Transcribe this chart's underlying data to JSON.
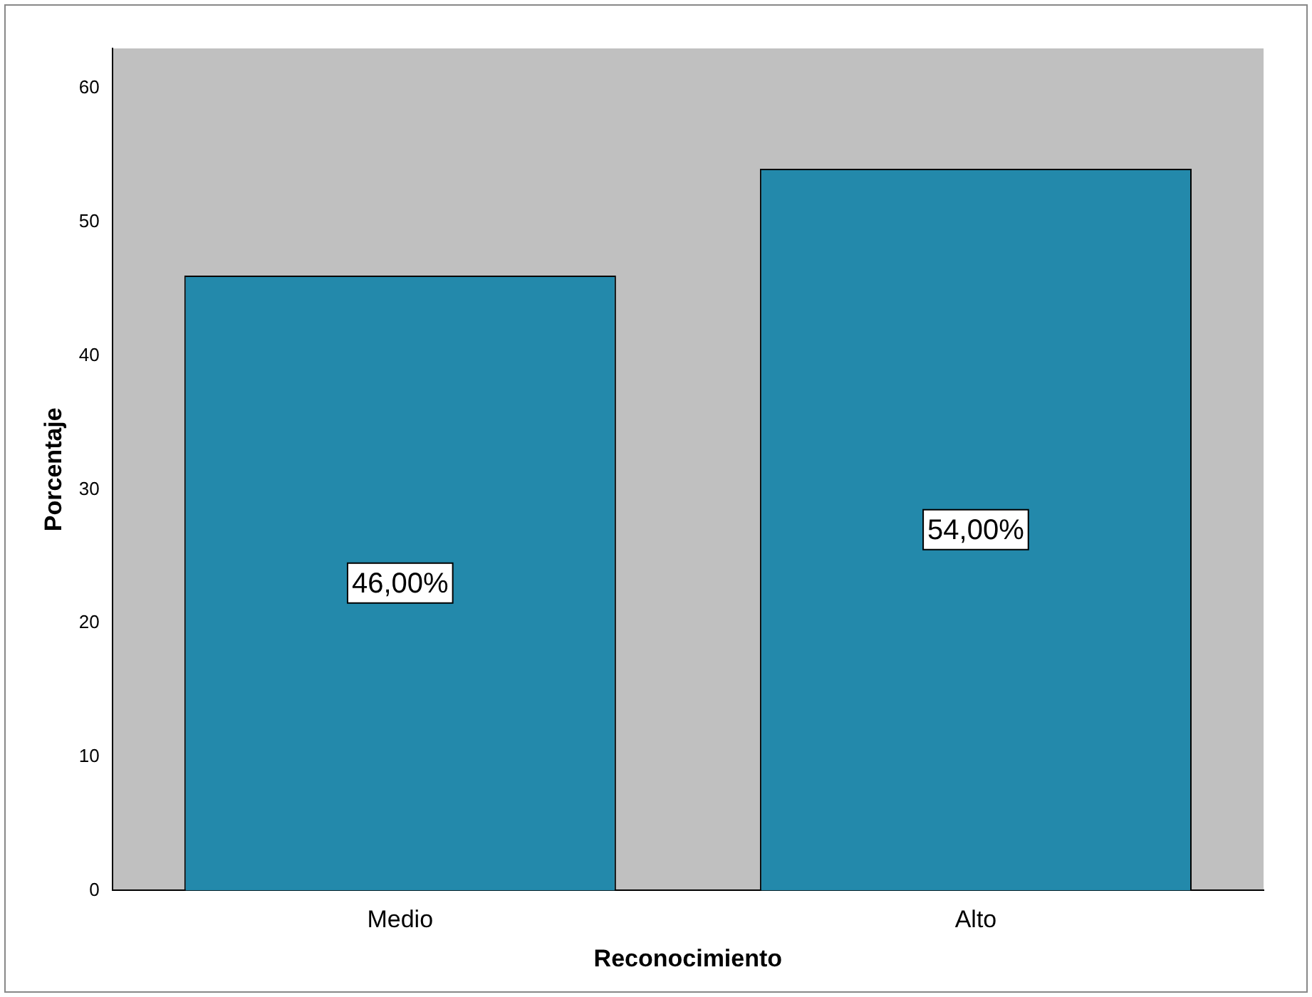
{
  "chart_data": {
    "type": "bar",
    "xlabel": "Reconocimiento",
    "ylabel": "Porcentaje",
    "categories": [
      "Medio",
      "Alto"
    ],
    "values": [
      46,
      54
    ],
    "color": "#2389ab",
    "value_labels": [
      "46,00%",
      "54,00%"
    ],
    "ylim": [
      0,
      63
    ],
    "yticks": [
      0,
      10,
      20,
      30,
      40,
      50,
      60
    ],
    "grid": false,
    "legend": false
  }
}
